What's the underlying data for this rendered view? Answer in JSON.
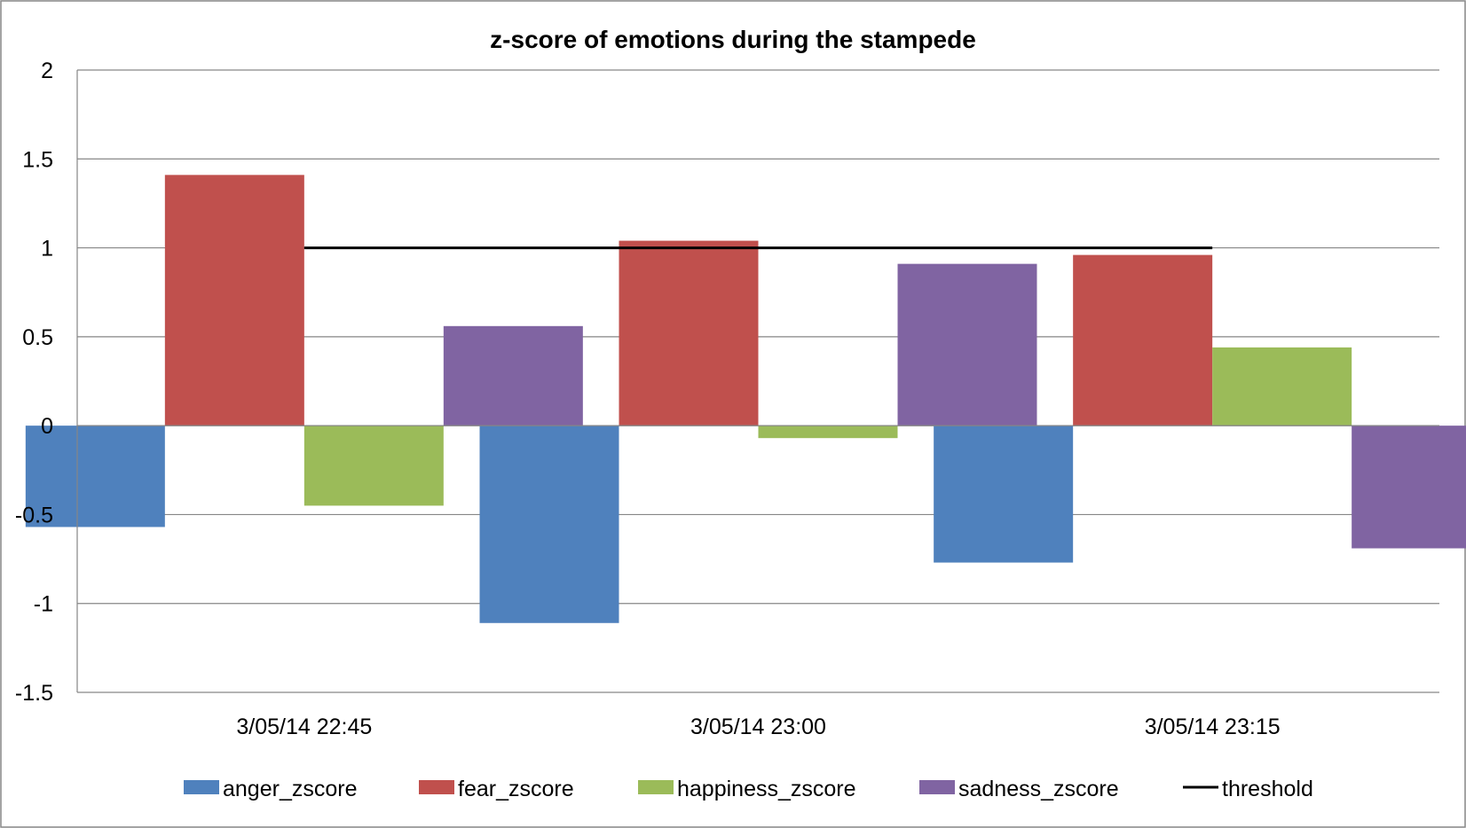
{
  "chart_data": {
    "type": "bar",
    "title": "z-score of emotions during the stampede",
    "xlabel": "",
    "ylabel": "",
    "categories": [
      "3/05/14 22:45",
      "3/05/14 23:00",
      "3/05/14 23:15"
    ],
    "ylim": [
      -1.5,
      2
    ],
    "yticks": [
      2,
      1.5,
      1,
      0.5,
      0,
      -0.5,
      -1,
      -1.5
    ],
    "grid": true,
    "legend_position": "bottom",
    "series": [
      {
        "name": "anger_zscore",
        "color": "#4f81bd",
        "values": [
          -0.57,
          -1.11,
          -0.77
        ]
      },
      {
        "name": "fear_zscore",
        "color": "#c0504d",
        "values": [
          1.41,
          1.04,
          0.96
        ]
      },
      {
        "name": "happiness_zscore",
        "color": "#9bbb59",
        "values": [
          -0.45,
          -0.07,
          0.44
        ]
      },
      {
        "name": "sadness_zscore",
        "color": "#8064a2",
        "values": [
          0.56,
          0.91,
          -0.69
        ]
      }
    ],
    "lines": [
      {
        "name": "threshold",
        "color": "#000000",
        "values": [
          1,
          1,
          1
        ]
      }
    ]
  }
}
